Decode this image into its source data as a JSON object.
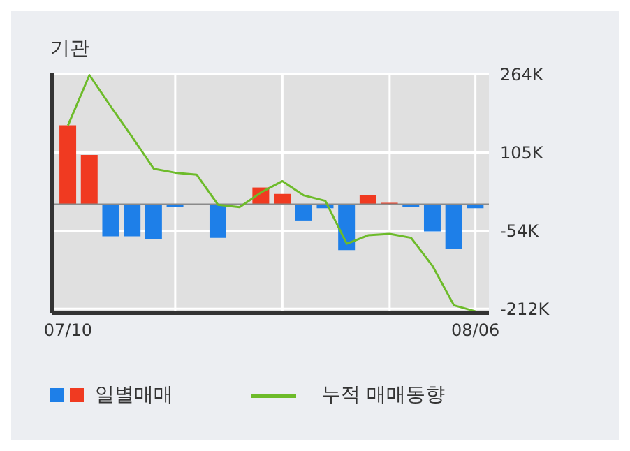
{
  "chart_data": {
    "type": "bar",
    "title": "기관",
    "categories": [
      "07/10",
      null,
      null,
      null,
      null,
      null,
      null,
      null,
      null,
      null,
      null,
      null,
      null,
      null,
      null,
      null,
      null,
      null,
      null,
      "08/06"
    ],
    "series": [
      {
        "name": "일별매매",
        "colors": [
          "#f03a21",
          "#f03a21",
          "#1e7fe8",
          "#1e7fe8",
          "#1e7fe8",
          "#1e7fe8",
          "#1e7fe8",
          "#1e7fe8",
          "#1e7fe8",
          "#f03a21",
          "#f03a21",
          "#1e7fe8",
          "#1e7fe8",
          "#1e7fe8",
          "#f03a21",
          "#f03a21",
          "#1e7fe8",
          "#1e7fe8",
          "#1e7fe8",
          "#1e7fe8"
        ],
        "values": [
          160,
          100,
          -65,
          -65,
          -71,
          -5,
          0,
          -68,
          0,
          34,
          21,
          -33,
          -8,
          -93,
          18,
          3,
          -5,
          -55,
          -90,
          -8
        ]
      },
      {
        "name": "누적 매매동향",
        "type": "line",
        "color": "#6dbb2a",
        "values": [
          160,
          262,
          198,
          136,
          72,
          64,
          60,
          -1,
          -6,
          24,
          47,
          18,
          7,
          -80,
          -63,
          -60,
          -68,
          -125,
          -205,
          -217
        ]
      }
    ],
    "ylim": [
      -220,
      267
    ],
    "yticks": [
      {
        "value": 264,
        "label": "264K"
      },
      {
        "value": 105,
        "label": "105K"
      },
      {
        "value": -54,
        "label": "-54K"
      },
      {
        "value": -212,
        "label": "-212K"
      }
    ],
    "ref_lines": [
      {
        "axis": "y",
        "value": 0,
        "color": "#8a8a8a"
      }
    ],
    "grid": true,
    "legend": "bottom",
    "marker": "none"
  }
}
